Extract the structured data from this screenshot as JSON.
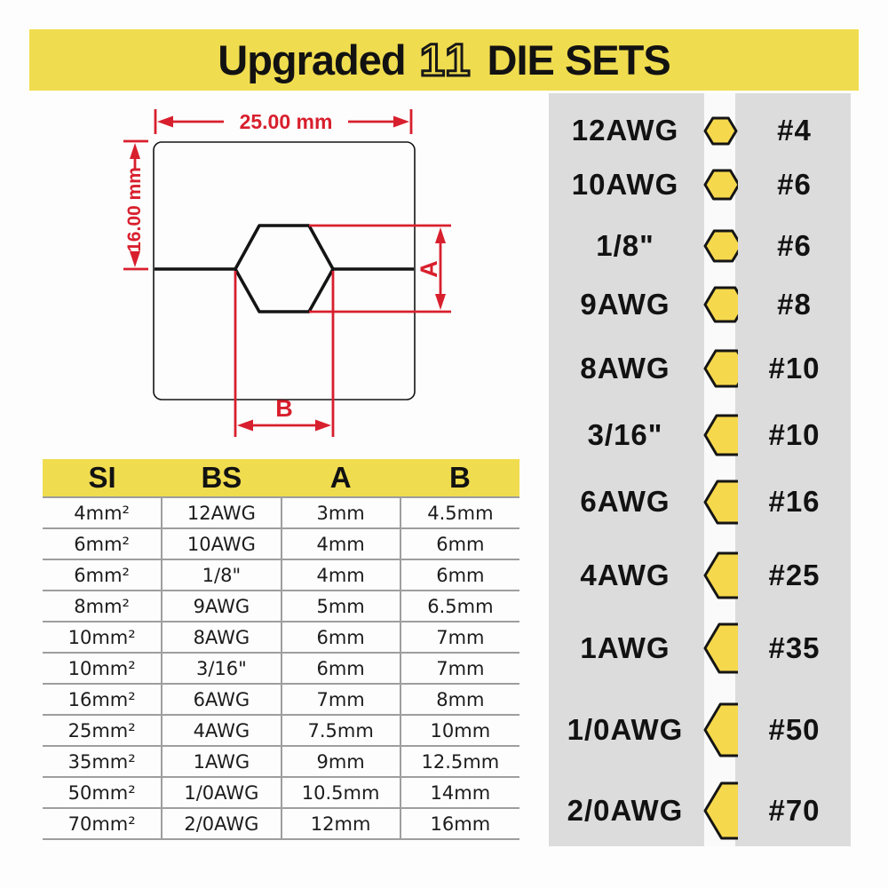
{
  "banner": {
    "prefix": "Upgraded",
    "count": "11",
    "suffix": "DIE SETS"
  },
  "diagram": {
    "width_label": "25.00 mm",
    "height_label": "16.00 mm",
    "dim_a_label": "A",
    "dim_b_label": "B"
  },
  "table": {
    "headers": [
      "SI",
      "BS",
      "A",
      "B"
    ],
    "rows": [
      {
        "si": "4mm²",
        "bs": "12AWG",
        "a": "3mm",
        "b": "4.5mm"
      },
      {
        "si": "6mm²",
        "bs": "10AWG",
        "a": "4mm",
        "b": "6mm"
      },
      {
        "si": "6mm²",
        "bs": "1/8\"",
        "a": "4mm",
        "b": "6mm"
      },
      {
        "si": "8mm²",
        "bs": "9AWG",
        "a": "5mm",
        "b": "6.5mm"
      },
      {
        "si": "10mm²",
        "bs": "8AWG",
        "a": "6mm",
        "b": "7mm"
      },
      {
        "si": "10mm²",
        "bs": "3/16\"",
        "a": "6mm",
        "b": "7mm"
      },
      {
        "si": "16mm²",
        "bs": "6AWG",
        "a": "7mm",
        "b": "8mm"
      },
      {
        "si": "25mm²",
        "bs": "4AWG",
        "a": "7.5mm",
        "b": "10mm"
      },
      {
        "si": "35mm²",
        "bs": "1AWG",
        "a": "9mm",
        "b": "12.5mm"
      },
      {
        "si": "50mm²",
        "bs": "1/0AWG",
        "a": "10.5mm",
        "b": "14mm"
      },
      {
        "si": "70mm²",
        "bs": "2/0AWG",
        "a": "12mm",
        "b": "16mm"
      }
    ]
  },
  "panel": {
    "items": [
      {
        "label": "12AWG",
        "value": "#4"
      },
      {
        "label": "10AWG",
        "value": "#6"
      },
      {
        "label": "1/8\"",
        "value": "#6"
      },
      {
        "label": "9AWG",
        "value": "#8"
      },
      {
        "label": "8AWG",
        "value": "#10"
      },
      {
        "label": "3/16\"",
        "value": "#10"
      },
      {
        "label": "6AWG",
        "value": "#16"
      },
      {
        "label": "4AWG",
        "value": "#25"
      },
      {
        "label": "1AWG",
        "value": "#35"
      },
      {
        "label": "1/0AWG",
        "value": "#50"
      },
      {
        "label": "2/0AWG",
        "value": "#70"
      }
    ]
  },
  "colors": {
    "yellow": "#F0DC4F",
    "hex_fill": "#F6D84C",
    "red": "#D81F2D",
    "panel_gray": "#DCDCDC"
  }
}
